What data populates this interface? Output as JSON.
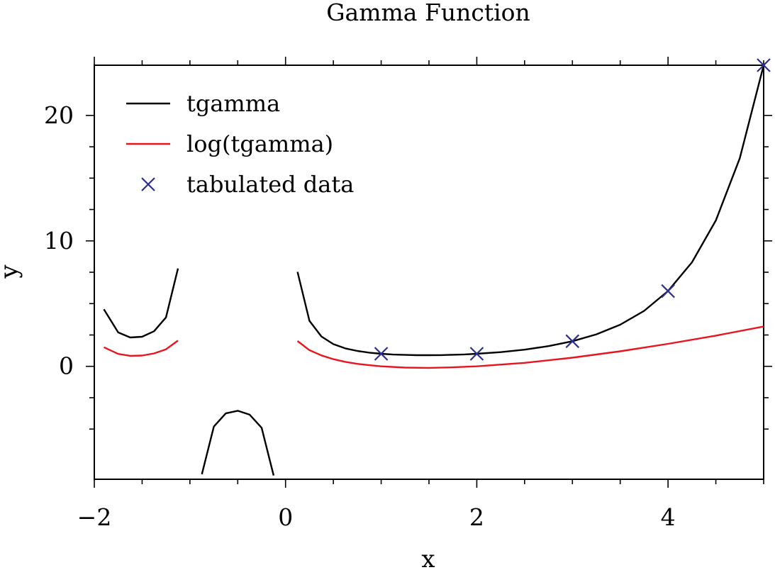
{
  "chart_data": {
    "type": "line",
    "title": "Gamma Function",
    "xlabel": "x",
    "ylabel": "y",
    "xlim": [
      -2,
      5
    ],
    "ylim": [
      -9,
      24
    ],
    "x_ticks": [
      -2,
      0,
      2,
      4
    ],
    "x_tick_labels": [
      "−2",
      "0",
      "2",
      "4"
    ],
    "y_ticks": [
      0,
      10,
      20
    ],
    "y_tick_labels": [
      "0",
      "10",
      "20"
    ],
    "grid": false,
    "legend_position": "top-left",
    "series": [
      {
        "name": "tgamma",
        "kind": "line",
        "color": "#000000",
        "segments": [
          [
            [
              -1.9,
              4.55
            ],
            [
              -1.75,
              2.7
            ],
            [
              -1.625,
              2.3
            ],
            [
              -1.5,
              2.36
            ],
            [
              -1.375,
              2.8
            ],
            [
              -1.25,
              3.9
            ],
            [
              -1.125,
              7.8
            ]
          ],
          [
            [
              -0.875,
              -8.6
            ],
            [
              -0.75,
              -4.8
            ],
            [
              -0.625,
              -3.75
            ],
            [
              -0.5,
              -3.54
            ],
            [
              -0.375,
              -3.85
            ],
            [
              -0.25,
              -4.9
            ],
            [
              -0.125,
              -8.7
            ]
          ],
          [
            [
              0.125,
              7.53
            ],
            [
              0.25,
              3.63
            ],
            [
              0.375,
              2.38
            ],
            [
              0.5,
              1.77
            ],
            [
              0.625,
              1.43
            ],
            [
              0.75,
              1.23
            ],
            [
              0.875,
              1.09
            ],
            [
              1.0,
              1.0
            ],
            [
              1.125,
              0.94
            ],
            [
              1.25,
              0.91
            ],
            [
              1.375,
              0.89
            ],
            [
              1.5,
              0.886
            ],
            [
              1.625,
              0.896
            ],
            [
              1.75,
              0.92
            ],
            [
              1.875,
              0.95
            ],
            [
              2.0,
              1.0
            ],
            [
              2.25,
              1.13
            ],
            [
              2.5,
              1.33
            ],
            [
              2.75,
              1.61
            ],
            [
              3.0,
              2.0
            ],
            [
              3.25,
              2.55
            ],
            [
              3.5,
              3.32
            ],
            [
              3.75,
              4.42
            ],
            [
              4.0,
              6.0
            ],
            [
              4.25,
              8.29
            ],
            [
              4.5,
              11.63
            ],
            [
              4.75,
              16.58
            ],
            [
              5.0,
              24.0
            ]
          ]
        ]
      },
      {
        "name": "log(tgamma)",
        "kind": "line",
        "color": "#e8141e",
        "segments": [
          [
            [
              -1.9,
              1.52
            ],
            [
              -1.75,
              0.99
            ],
            [
              -1.625,
              0.84
            ],
            [
              -1.5,
              0.86
            ],
            [
              -1.375,
              1.03
            ],
            [
              -1.25,
              1.36
            ],
            [
              -1.125,
              2.05
            ]
          ],
          [
            [
              0.125,
              2.02
            ],
            [
              0.25,
              1.29
            ],
            [
              0.375,
              0.87
            ],
            [
              0.5,
              0.57
            ],
            [
              0.625,
              0.36
            ],
            [
              0.75,
              0.2
            ],
            [
              0.875,
              0.09
            ],
            [
              1.0,
              0.0
            ],
            [
              1.25,
              -0.1
            ],
            [
              1.5,
              -0.12
            ],
            [
              1.75,
              -0.08
            ],
            [
              2.0,
              0.0
            ],
            [
              2.5,
              0.28
            ],
            [
              3.0,
              0.69
            ],
            [
              3.5,
              1.2
            ],
            [
              4.0,
              1.79
            ],
            [
              4.5,
              2.45
            ],
            [
              5.0,
              3.18
            ]
          ]
        ]
      },
      {
        "name": "tabulated data",
        "kind": "marker",
        "marker": "x",
        "color": "#2b2f8f",
        "x": [
          1,
          2,
          3,
          4,
          5
        ],
        "y": [
          1,
          1,
          2,
          6,
          24
        ]
      }
    ]
  }
}
